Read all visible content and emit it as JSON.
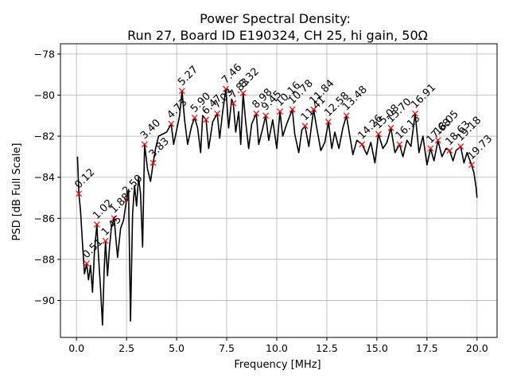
{
  "chart_data": {
    "type": "line",
    "title_line1": "Power Spectral Density:",
    "title_line2": "Run 27, Board ID E190324, CH 25, hi gain, 50Ω",
    "xlabel": "Frequency [MHz]",
    "ylabel": "PSD [dB Full Scale]",
    "xlim": [
      -0.8,
      21.0
    ],
    "ylim": [
      -91.8,
      -77.5
    ],
    "grid": true,
    "x_ticks": [
      0.0,
      2.5,
      5.0,
      7.5,
      10.0,
      12.5,
      15.0,
      17.5,
      20.0
    ],
    "x_tick_labels": [
      "0.0",
      "2.5",
      "5.0",
      "7.5",
      "10.0",
      "12.5",
      "15.0",
      "17.5",
      "20.0"
    ],
    "y_ticks": [
      -90,
      -88,
      -86,
      -84,
      -82,
      -80,
      -78
    ],
    "y_tick_labels": [
      "−90",
      "−88",
      "−86",
      "−84",
      "−82",
      "−80",
      "−78"
    ],
    "line_color": "#000000",
    "marker_color": "#ff0000",
    "series": [
      {
        "values": [
          [
            0.05,
            -83.0
          ],
          [
            0.12,
            -84.8
          ],
          [
            0.2,
            -85.6
          ],
          [
            0.3,
            -87.2
          ],
          [
            0.4,
            -88.7
          ],
          [
            0.51,
            -88.2
          ],
          [
            0.6,
            -89.0
          ],
          [
            0.7,
            -88.3
          ],
          [
            0.8,
            -89.6
          ],
          [
            0.9,
            -87.6
          ],
          [
            1.02,
            -86.3
          ],
          [
            1.1,
            -87.8
          ],
          [
            1.2,
            -89.4
          ],
          [
            1.3,
            -91.2
          ],
          [
            1.38,
            -88.6
          ],
          [
            1.45,
            -87.1
          ],
          [
            1.55,
            -88.8
          ],
          [
            1.65,
            -87.4
          ],
          [
            1.75,
            -86.4
          ],
          [
            1.88,
            -86.0
          ],
          [
            1.95,
            -86.8
          ],
          [
            2.05,
            -87.9
          ],
          [
            2.2,
            -86.5
          ],
          [
            2.35,
            -86.1
          ],
          [
            2.5,
            -85.1
          ],
          [
            2.6,
            -84.6
          ],
          [
            2.7,
            -91.0
          ],
          [
            2.8,
            -85.8
          ],
          [
            2.9,
            -84.4
          ],
          [
            3.0,
            -85.4
          ],
          [
            3.1,
            -84.0
          ],
          [
            3.2,
            -84.8
          ],
          [
            3.3,
            -87.4
          ],
          [
            3.4,
            -82.4
          ],
          [
            3.55,
            -83.6
          ],
          [
            3.7,
            -84.2
          ],
          [
            3.83,
            -83.3
          ],
          [
            3.95,
            -82.6
          ],
          [
            4.1,
            -82.0
          ],
          [
            4.3,
            -81.9
          ],
          [
            4.5,
            -81.8
          ],
          [
            4.73,
            -81.4
          ],
          [
            4.85,
            -82.4
          ],
          [
            5.0,
            -81.7
          ],
          [
            5.15,
            -81.0
          ],
          [
            5.27,
            -79.8
          ],
          [
            5.4,
            -81.2
          ],
          [
            5.55,
            -82.4
          ],
          [
            5.75,
            -81.5
          ],
          [
            5.9,
            -81.1
          ],
          [
            6.05,
            -81.6
          ],
          [
            6.2,
            -82.8
          ],
          [
            6.3,
            -81.0
          ],
          [
            6.47,
            -81.2
          ],
          [
            6.6,
            -82.6
          ],
          [
            6.8,
            -81.3
          ],
          [
            7.03,
            -80.9
          ],
          [
            7.15,
            -82.1
          ],
          [
            7.3,
            -80.8
          ],
          [
            7.46,
            -79.7
          ],
          [
            7.6,
            -81.6
          ],
          [
            7.75,
            -80.2
          ],
          [
            7.83,
            -80.4
          ],
          [
            7.95,
            -81.8
          ],
          [
            8.1,
            -80.8
          ],
          [
            8.2,
            -82.4
          ],
          [
            8.32,
            -79.9
          ],
          [
            8.45,
            -81.3
          ],
          [
            8.6,
            -82.6
          ],
          [
            8.75,
            -81.4
          ],
          [
            8.98,
            -80.9
          ],
          [
            9.1,
            -82.4
          ],
          [
            9.3,
            -81.6
          ],
          [
            9.45,
            -81.0
          ],
          [
            9.6,
            -82.2
          ],
          [
            9.8,
            -81.2
          ],
          [
            10.0,
            -82.6
          ],
          [
            10.16,
            -80.8
          ],
          [
            10.3,
            -82.0
          ],
          [
            10.5,
            -81.4
          ],
          [
            10.78,
            -80.7
          ],
          [
            10.9,
            -81.9
          ],
          [
            11.1,
            -82.8
          ],
          [
            11.25,
            -81.7
          ],
          [
            11.41,
            -81.5
          ],
          [
            11.6,
            -82.5
          ],
          [
            11.84,
            -80.7
          ],
          [
            12.0,
            -81.6
          ],
          [
            12.2,
            -82.7
          ],
          [
            12.4,
            -82.3
          ],
          [
            12.58,
            -81.3
          ],
          [
            12.75,
            -82.6
          ],
          [
            12.9,
            -81.8
          ],
          [
            13.1,
            -82.6
          ],
          [
            13.3,
            -81.6
          ],
          [
            13.48,
            -81.0
          ],
          [
            13.65,
            -82.0
          ],
          [
            13.8,
            -82.9
          ],
          [
            14.0,
            -82.2
          ],
          [
            14.26,
            -82.4
          ],
          [
            14.5,
            -82.9
          ],
          [
            14.7,
            -82.3
          ],
          [
            14.9,
            -83.3
          ],
          [
            15.08,
            -81.9
          ],
          [
            15.3,
            -82.6
          ],
          [
            15.5,
            -82.3
          ],
          [
            15.7,
            -81.6
          ],
          [
            15.9,
            -82.8
          ],
          [
            16.13,
            -82.4
          ],
          [
            16.3,
            -83.0
          ],
          [
            16.5,
            -82.2
          ],
          [
            16.7,
            -82.5
          ],
          [
            16.91,
            -80.9
          ],
          [
            17.1,
            -82.8
          ],
          [
            17.3,
            -82.0
          ],
          [
            17.5,
            -83.4
          ],
          [
            17.68,
            -82.6
          ],
          [
            17.85,
            -83.2
          ],
          [
            18.05,
            -82.2
          ],
          [
            18.25,
            -83.0
          ],
          [
            18.45,
            -82.6
          ],
          [
            18.63,
            -82.7
          ],
          [
            18.8,
            -83.2
          ],
          [
            18.95,
            -82.7
          ],
          [
            19.18,
            -82.5
          ],
          [
            19.35,
            -83.3
          ],
          [
            19.5,
            -82.8
          ],
          [
            19.73,
            -83.4
          ],
          [
            19.85,
            -83.8
          ],
          [
            19.95,
            -84.5
          ],
          [
            20.0,
            -85.0
          ]
        ]
      }
    ],
    "peaks": [
      {
        "label": "0.12",
        "x": 0.12,
        "y": -84.8
      },
      {
        "label": "0.51",
        "x": 0.51,
        "y": -88.2
      },
      {
        "label": "1.02",
        "x": 1.02,
        "y": -86.3
      },
      {
        "label": "1.45",
        "x": 1.45,
        "y": -87.1
      },
      {
        "label": "1.88",
        "x": 1.88,
        "y": -86.0
      },
      {
        "label": "2.50",
        "x": 2.5,
        "y": -85.1
      },
      {
        "label": "3.40",
        "x": 3.4,
        "y": -82.4
      },
      {
        "label": "3.83",
        "x": 3.83,
        "y": -83.3
      },
      {
        "label": "4.73",
        "x": 4.73,
        "y": -81.4
      },
      {
        "label": "5.27",
        "x": 5.27,
        "y": -79.8
      },
      {
        "label": "5.90",
        "x": 5.9,
        "y": -81.1
      },
      {
        "label": "6.47",
        "x": 6.47,
        "y": -81.2
      },
      {
        "label": "7.03",
        "x": 7.03,
        "y": -80.9
      },
      {
        "label": "7.46",
        "x": 7.46,
        "y": -79.7
      },
      {
        "label": "7.83",
        "x": 7.83,
        "y": -80.4
      },
      {
        "label": "8.32",
        "x": 8.32,
        "y": -79.9
      },
      {
        "label": "8.98",
        "x": 8.98,
        "y": -80.9
      },
      {
        "label": "9.45",
        "x": 9.45,
        "y": -81.0
      },
      {
        "label": "10.16",
        "x": 10.16,
        "y": -80.8
      },
      {
        "label": "10.78",
        "x": 10.78,
        "y": -80.7
      },
      {
        "label": "11.41",
        "x": 11.41,
        "y": -81.5
      },
      {
        "label": "11.84",
        "x": 11.84,
        "y": -80.7
      },
      {
        "label": "12.58",
        "x": 12.58,
        "y": -81.3
      },
      {
        "label": "13.48",
        "x": 13.48,
        "y": -81.0
      },
      {
        "label": "14.26",
        "x": 14.26,
        "y": -82.4
      },
      {
        "label": "15.08",
        "x": 15.08,
        "y": -81.9
      },
      {
        "label": "15.70",
        "x": 15.7,
        "y": -81.6
      },
      {
        "label": "16.13",
        "x": 16.13,
        "y": -82.4
      },
      {
        "label": "16.91",
        "x": 16.91,
        "y": -80.9
      },
      {
        "label": "17.68",
        "x": 17.68,
        "y": -82.6
      },
      {
        "label": "18.05",
        "x": 18.05,
        "y": -82.2
      },
      {
        "label": "18.63",
        "x": 18.63,
        "y": -82.7
      },
      {
        "label": "19.18",
        "x": 19.18,
        "y": -82.5
      },
      {
        "label": "19.73",
        "x": 19.73,
        "y": -83.4
      }
    ]
  }
}
